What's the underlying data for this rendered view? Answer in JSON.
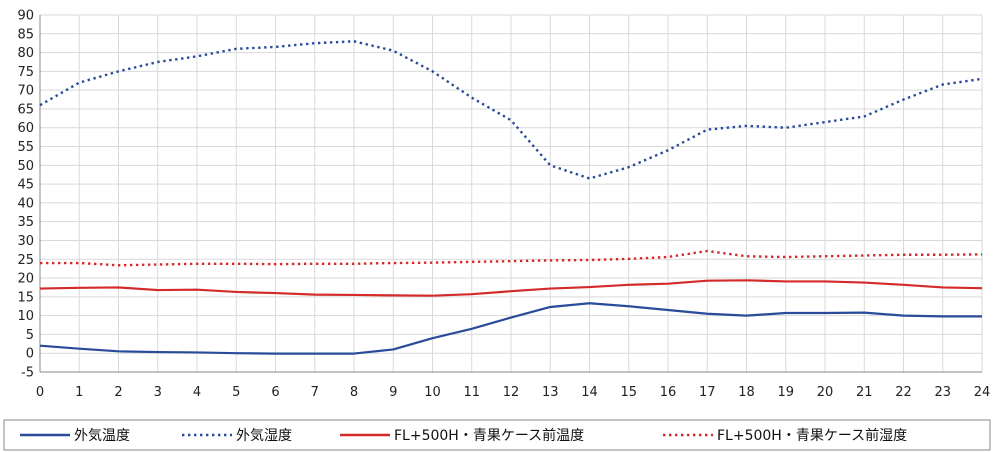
{
  "chart_data": {
    "type": "line",
    "title": "",
    "xlabel": "",
    "ylabel": "",
    "x": [
      0,
      1,
      2,
      3,
      4,
      5,
      6,
      7,
      8,
      9,
      10,
      11,
      12,
      13,
      14,
      15,
      16,
      17,
      18,
      19,
      20,
      21,
      22,
      23,
      24
    ],
    "xlim": [
      0,
      24
    ],
    "ylim": [
      -5,
      90
    ],
    "x_ticks": [
      "0",
      "1",
      "2",
      "3",
      "4",
      "5",
      "6",
      "7",
      "8",
      "9",
      "10",
      "11",
      "12",
      "13",
      "14",
      "15",
      "16",
      "17",
      "18",
      "19",
      "20",
      "21",
      "22",
      "23",
      "24"
    ],
    "y_ticks": [
      "-5",
      "0",
      "5",
      "10",
      "15",
      "20",
      "25",
      "30",
      "35",
      "40",
      "45",
      "50",
      "55",
      "60",
      "65",
      "70",
      "75",
      "80",
      "85",
      "90"
    ],
    "grid": true,
    "legend_position": "bottom",
    "series": [
      {
        "name": "外気温度",
        "color": "#2a4a9a",
        "style": "solid",
        "values": [
          2,
          1.2,
          0.5,
          0.3,
          0.2,
          0,
          -0.1,
          -0.1,
          -0.1,
          1,
          4,
          6.5,
          9.5,
          12.3,
          13.3,
          12.5,
          11.5,
          10.5,
          10,
          10.7,
          10.7,
          10.8,
          10,
          9.8,
          9.8
        ]
      },
      {
        "name": "外気湿度",
        "color": "#2a4a9a",
        "style": "dotted",
        "values": [
          66,
          72,
          75,
          77.5,
          79,
          81,
          81.5,
          82.5,
          83,
          80.5,
          75,
          68,
          62,
          50,
          46.5,
          49.5,
          54,
          59.5,
          60.5,
          60,
          61.5,
          63,
          67.5,
          71.5,
          73
        ]
      },
      {
        "name": "FL+500H・青果ケース前温度",
        "color": "#d42a2a",
        "style": "solid",
        "values": [
          17.2,
          17.4,
          17.5,
          16.8,
          16.9,
          16.3,
          16,
          15.6,
          15.5,
          15.4,
          15.3,
          15.7,
          16.5,
          17.2,
          17.6,
          18.2,
          18.5,
          19.3,
          19.4,
          19.1,
          19.1,
          18.8,
          18.2,
          17.5,
          17.3
        ]
      },
      {
        "name": "FL+500H・青果ケース前湿度",
        "color": "#d42a2a",
        "style": "dotted",
        "values": [
          24,
          24,
          23.4,
          23.6,
          23.8,
          23.8,
          23.7,
          23.8,
          23.8,
          24,
          24.1,
          24.3,
          24.5,
          24.7,
          24.8,
          25.1,
          25.6,
          27.2,
          25.8,
          25.6,
          25.8,
          26,
          26.2,
          26.2,
          26.3
        ]
      }
    ]
  }
}
